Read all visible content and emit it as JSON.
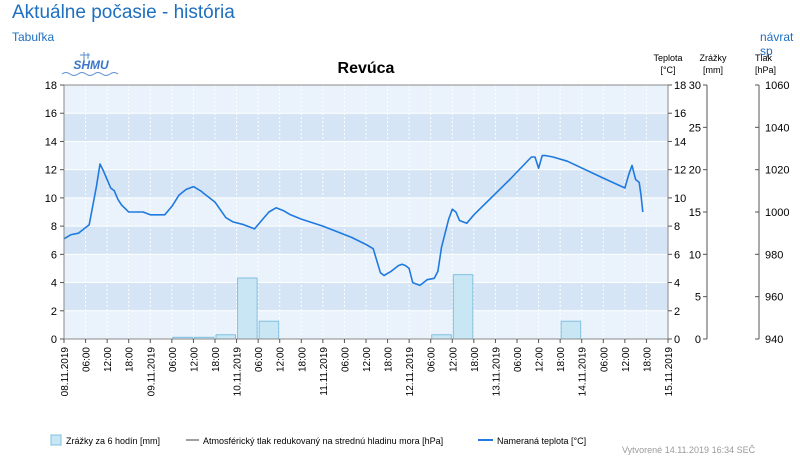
{
  "header": {
    "title": "Aktuálne počasie - história",
    "table_link": "Tabuľka",
    "back_link": "návrat sp"
  },
  "logo_text": "SHMU",
  "footer": "Vytvorené 14.11.2019 16:34 SEČ",
  "colors": {
    "temperature": "#1f7ae0",
    "precip_fill": "#c9e6f5",
    "precip_stroke": "#7fc0df",
    "band_light": "#eaf2fb",
    "band_dark": "#d6e5f6",
    "pressure": "#a0a0a0"
  },
  "chart_data": {
    "type": "line",
    "title": "Revúca",
    "axes": {
      "temperature": {
        "label": [
          "Teplota",
          "[°C]"
        ],
        "range": [
          0,
          18
        ],
        "ticks": [
          0,
          2,
          4,
          6,
          8,
          10,
          12,
          14,
          16,
          18
        ]
      },
      "precipitation": {
        "label": [
          "Zrážky",
          "[mm]"
        ],
        "range": [
          0,
          30
        ],
        "ticks": [
          0,
          5,
          10,
          15,
          20,
          25,
          30
        ]
      },
      "pressure": {
        "label": [
          "Tlak",
          "[hPa]"
        ],
        "range": [
          940,
          1060
        ],
        "ticks": [
          940,
          960,
          980,
          1000,
          1020,
          1040,
          1060
        ]
      }
    },
    "x_range_hours": [
      0,
      168
    ],
    "x_ticks": [
      {
        "h": 0,
        "label": "08.11.2019"
      },
      {
        "h": 6,
        "label": "06:00"
      },
      {
        "h": 12,
        "label": "12:00"
      },
      {
        "h": 18,
        "label": "18:00"
      },
      {
        "h": 24,
        "label": "09.11.2019"
      },
      {
        "h": 30,
        "label": "06:00"
      },
      {
        "h": 36,
        "label": "12:00"
      },
      {
        "h": 42,
        "label": "18:00"
      },
      {
        "h": 48,
        "label": "10.11.2019"
      },
      {
        "h": 54,
        "label": "06:00"
      },
      {
        "h": 60,
        "label": "12:00"
      },
      {
        "h": 66,
        "label": "18:00"
      },
      {
        "h": 72,
        "label": "11.11.2019"
      },
      {
        "h": 78,
        "label": "06:00"
      },
      {
        "h": 84,
        "label": "12:00"
      },
      {
        "h": 90,
        "label": "18:00"
      },
      {
        "h": 96,
        "label": "12.11.2019"
      },
      {
        "h": 102,
        "label": "06:00"
      },
      {
        "h": 108,
        "label": "12:00"
      },
      {
        "h": 114,
        "label": "18:00"
      },
      {
        "h": 120,
        "label": "13.11.2019"
      },
      {
        "h": 126,
        "label": "06:00"
      },
      {
        "h": 132,
        "label": "12:00"
      },
      {
        "h": 138,
        "label": "18:00"
      },
      {
        "h": 144,
        "label": "14.11.2019"
      },
      {
        "h": 150,
        "label": "06:00"
      },
      {
        "h": 156,
        "label": "12:00"
      },
      {
        "h": 162,
        "label": "18:00"
      },
      {
        "h": 168,
        "label": "15.11.2019"
      }
    ],
    "series": [
      {
        "name": "Nameraná teplota [°C]",
        "type": "line",
        "axis": "temperature",
        "x": [
          0,
          2,
          4,
          7,
          9,
          10,
          11,
          12,
          13,
          14,
          15,
          16,
          18,
          20,
          22,
          24,
          28,
          30,
          31,
          32,
          33,
          34,
          36,
          38,
          39,
          40,
          42,
          45,
          47,
          50,
          53,
          57,
          59,
          61,
          63,
          66,
          72,
          80,
          84,
          86,
          88,
          89,
          91,
          93,
          94,
          95,
          96,
          97,
          99,
          100,
          101,
          103,
          104,
          105,
          106,
          107,
          108,
          109,
          110,
          112,
          114,
          116,
          120,
          124,
          130,
          131,
          132,
          133,
          134,
          136,
          140,
          150,
          156,
          157,
          158,
          159,
          160,
          160.5,
          161
        ],
        "values": [
          7.1,
          7.4,
          7.5,
          8.1,
          10.8,
          12.4,
          11.9,
          11.3,
          10.7,
          10.5,
          9.9,
          9.5,
          9.0,
          9.0,
          9.0,
          8.8,
          8.8,
          9.4,
          9.8,
          10.2,
          10.4,
          10.6,
          10.8,
          10.5,
          10.3,
          10.1,
          9.7,
          8.6,
          8.3,
          8.1,
          7.8,
          9.0,
          9.3,
          9.1,
          8.8,
          8.5,
          8.0,
          7.2,
          6.7,
          6.4,
          4.7,
          4.5,
          4.8,
          5.2,
          5.3,
          5.2,
          5.0,
          4.0,
          3.8,
          4.0,
          4.2,
          4.3,
          4.8,
          6.5,
          7.5,
          8.5,
          9.2,
          9.0,
          8.4,
          8.2,
          8.8,
          9.3,
          10.3,
          11.3,
          12.9,
          12.9,
          12.1,
          13.0,
          13.0,
          12.9,
          12.6,
          11.4,
          10.7,
          11.6,
          12.3,
          11.3,
          11.1,
          10.2,
          9.0
        ]
      },
      {
        "name": "Zrážky za 6 hodín [mm]",
        "type": "bar",
        "axis": "precipitation",
        "x_start": [
          0,
          6,
          12,
          18,
          24,
          30,
          36,
          42,
          48,
          54,
          60,
          66,
          72,
          78,
          84,
          90,
          96,
          102,
          108,
          114,
          120,
          126,
          132,
          138,
          144,
          150,
          156,
          162
        ],
        "values": [
          0,
          0,
          0,
          0,
          0,
          0.2,
          0.2,
          0.5,
          7.2,
          2.1,
          0,
          0,
          0,
          0,
          0,
          0,
          0,
          0.5,
          7.6,
          0,
          0,
          0,
          0,
          2.1,
          0,
          0,
          0,
          0
        ]
      },
      {
        "name": "Atmosférický tlak redukovaný na strednú hladinu mora [hPa]",
        "type": "line",
        "axis": "pressure",
        "values": []
      }
    ],
    "legend_position": "bottom"
  }
}
